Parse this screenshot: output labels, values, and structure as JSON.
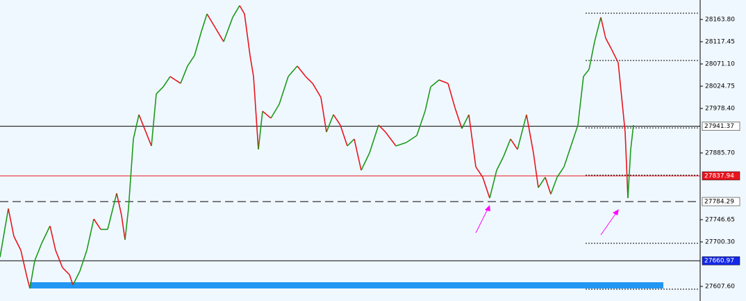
{
  "chart_data": {
    "type": "line",
    "ylim": [
      27577.18,
      28204.36
    ],
    "xlim": [
      0,
      1008
    ],
    "yticks": [
      {
        "value": 28163.8,
        "label": "28163.80"
      },
      {
        "value": 28117.45,
        "label": "28117.45"
      },
      {
        "value": 28071.1,
        "label": "28071.10"
      },
      {
        "value": 28024.75,
        "label": "28024.75"
      },
      {
        "value": 27978.4,
        "label": "27978.40"
      },
      {
        "value": 27885.7,
        "label": "27885.70"
      },
      {
        "value": 27746.65,
        "label": "27746.65"
      },
      {
        "value": 27700.3,
        "label": "27700.30"
      },
      {
        "value": 27607.6,
        "label": "27607.60"
      }
    ],
    "up_color": "#1a9a1a",
    "down_color": "#e8141e",
    "series": [
      {
        "x": [
          0,
          12,
          20,
          30,
          38,
          43,
          50,
          60,
          72,
          80,
          90,
          100,
          105,
          115,
          125,
          135,
          145,
          155,
          168,
          175,
          180,
          185,
          192,
          200,
          210,
          218,
          225,
          235,
          245,
          260,
          270,
          280,
          290,
          298,
          310,
          322,
          335,
          345,
          352,
          360,
          365,
          372,
          378,
          390,
          402,
          415,
          428,
          440,
          450,
          462,
          470,
          480,
          490,
          500,
          510,
          520,
          532,
          545,
          555,
          570,
          585,
          600,
          612,
          620,
          632,
          645,
          655,
          665,
          675,
          685,
          695,
          705,
          715,
          725,
          735,
          745,
          758,
          768,
          775,
          785,
          793,
          802,
          812,
          822,
          832,
          840,
          848,
          856,
          865,
          872,
          880,
          890,
          896,
          900,
          904,
          908,
          912
        ],
        "values": [
          27668.4,
          27769.8,
          27711.9,
          27682.9,
          27632.2,
          27603.3,
          27661.2,
          27697.4,
          27733.6,
          27682.9,
          27646.7,
          27632.2,
          27610.5,
          27639.5,
          27682.9,
          27748.1,
          27726.4,
          27726.4,
          27801.7,
          27755.4,
          27704.7,
          27769.8,
          27914.7,
          27965.4,
          27929.2,
          27900.2,
          28008.8,
          28023.3,
          28045.0,
          28030.6,
          28066.8,
          28088.5,
          28139.2,
          28175.4,
          28146.4,
          28117.5,
          28168.2,
          28192.8,
          28175.4,
          28088.5,
          28045.0,
          27893.0,
          27972.6,
          27958.1,
          27987.1,
          28045.0,
          28066.8,
          28045.0,
          28030.6,
          28001.6,
          27929.2,
          27965.4,
          27943.7,
          27900.2,
          27914.7,
          27849.5,
          27885.7,
          27943.7,
          27929.2,
          27900.2,
          27907.4,
          27921.9,
          27972.6,
          28023.3,
          28037.8,
          28030.6,
          27979.9,
          27936.4,
          27965.4,
          27856.7,
          27835.0,
          27791.6,
          27849.5,
          27878.5,
          27914.7,
          27893.0,
          27965.4,
          27885.7,
          27813.3,
          27835.0,
          27799.7,
          27835.0,
          27856.7,
          27900.2,
          27943.7,
          28045.0,
          28059.5,
          28117.5,
          28168.2,
          28124.7,
          28102.9,
          28073.9,
          27987.1,
          27929.2,
          27791.6,
          27893.0,
          27943.7
        ]
      }
    ],
    "levels": [
      {
        "value": 27941.37,
        "label": "27941.37",
        "color": "#000000",
        "style": "solid",
        "label_bg": "#ffffff",
        "label_color": "#000000"
      },
      {
        "value": 27837.94,
        "label": "27837.94",
        "color": "#e8141e",
        "style": "solid",
        "label_bg": "#e8141e",
        "label_color": "#ffffff"
      },
      {
        "value": 27784.29,
        "label": "27784.29",
        "color": "#000000",
        "style": "dashed",
        "label_bg": "#ffffff",
        "label_color": "#000000"
      },
      {
        "value": 27660.97,
        "label": "27660.97",
        "color": "#000000",
        "style": "solid",
        "label_bg": "#1428e6",
        "label_color": "#ffffff"
      }
    ],
    "dotted_levels": [
      28176.8,
      28078.4,
      27937.9,
      27839.4,
      27697.4,
      27601.8
    ],
    "zone": {
      "y": [
        27603.3,
        27616.3
      ],
      "x": [
        43,
        955
      ],
      "color": "#2196f3"
    }
  }
}
